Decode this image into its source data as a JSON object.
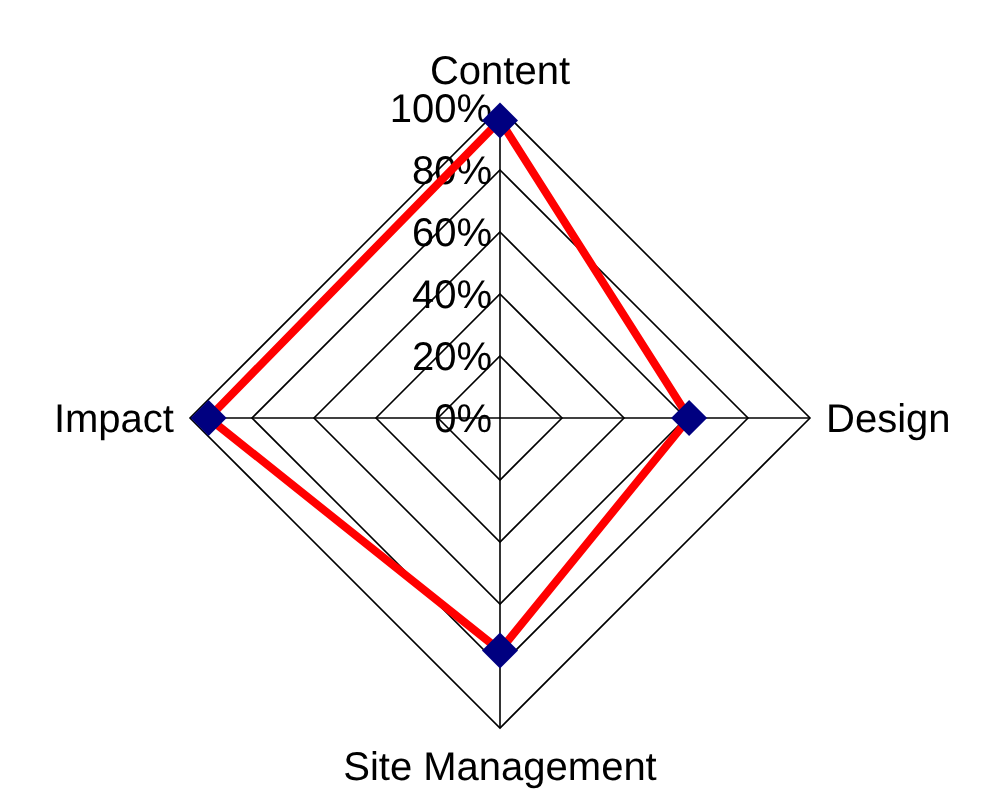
{
  "chart_data": {
    "type": "radar",
    "categories": [
      "Content",
      "Design",
      "Site Management",
      "Impact"
    ],
    "series": [
      {
        "color": "#ff0000",
        "values": [
          96,
          61,
          75,
          94
        ]
      }
    ],
    "ylim": [
      0,
      100
    ],
    "yticks": [
      {
        "value": 0,
        "label": "0%"
      },
      {
        "value": 20,
        "label": "20%"
      },
      {
        "value": 40,
        "label": "40%"
      },
      {
        "value": 60,
        "label": "60%"
      },
      {
        "value": 80,
        "label": "80%"
      },
      {
        "value": 100,
        "label": "100%"
      }
    ],
    "marker": "diamond",
    "grid": true
  }
}
